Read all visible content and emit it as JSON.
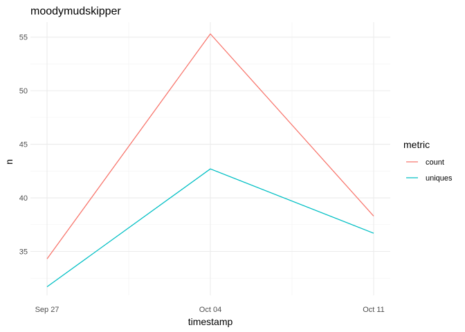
{
  "chart_data": {
    "type": "line",
    "title": "moodymudskipper",
    "xlabel": "timestamp",
    "ylabel": "n",
    "x_dates": [
      "2023-09-27",
      "2023-10-04",
      "2023-10-11"
    ],
    "x_tick_labels": [
      "Sep 27",
      "Oct 04",
      "Oct 11"
    ],
    "y_ticks": [
      35,
      40,
      45,
      50,
      55
    ],
    "ylim": [
      30.9,
      56.4
    ],
    "grid": true,
    "legend": {
      "title": "metric",
      "position": "right"
    },
    "series": [
      {
        "name": "count",
        "color": "#F8766D",
        "values": [
          34.3,
          55.3,
          38.3
        ]
      },
      {
        "name": "uniques",
        "color": "#00BFC4",
        "values": [
          31.7,
          42.7,
          36.7
        ]
      }
    ]
  }
}
